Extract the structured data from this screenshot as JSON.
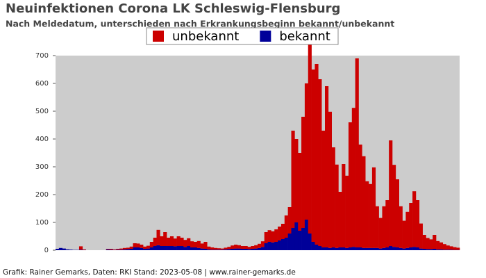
{
  "chart_data": {
    "type": "stacked_bar",
    "title": "Neuinfektionen Corona LK Schleswig-Flensburg",
    "subtitle": "Nach Meldedatum, unterschieden nach Erkrankungsbeginn bekannt/unbekannt",
    "footer": "Grafik: Rainer Gemarks, Daten: RKI Stand: 2023-05-08 | www.rainer-gemarks.de",
    "categories": [
      null,
      null,
      null,
      null,
      null,
      null,
      null,
      null,
      null,
      null,
      null,
      null,
      null,
      null,
      null,
      null,
      null,
      null,
      null,
      null,
      null,
      null,
      null,
      null,
      null,
      null,
      null,
      null,
      null,
      null,
      null,
      null,
      null,
      null,
      null,
      null,
      null,
      null,
      null,
      null,
      null,
      null,
      null,
      null,
      null,
      null,
      null,
      null,
      null,
      null,
      null,
      null,
      null,
      null,
      null,
      null,
      null,
      null,
      null,
      null,
      null,
      null,
      null,
      null,
      null,
      null,
      null,
      null,
      null,
      null,
      null,
      null,
      null,
      null,
      null,
      null,
      null,
      null,
      null,
      null,
      null,
      null,
      null,
      null,
      null,
      null,
      null,
      null,
      null,
      null,
      null,
      null,
      null,
      null,
      null,
      null,
      null,
      null,
      null,
      null,
      null,
      null,
      null,
      null,
      null,
      null,
      null,
      null,
      null,
      null,
      null,
      null,
      null,
      null,
      null,
      null,
      null,
      null,
      null,
      null
    ],
    "series": [
      {
        "name": "bekannt",
        "color": "#000099",
        "values": [
          5,
          8,
          6,
          3,
          2,
          1,
          1,
          2,
          1,
          0,
          0,
          0,
          0,
          0,
          0,
          3,
          2,
          1,
          2,
          2,
          3,
          4,
          5,
          10,
          10,
          8,
          5,
          6,
          10,
          15,
          18,
          15,
          15,
          15,
          15,
          14,
          15,
          15,
          12,
          15,
          10,
          10,
          8,
          6,
          5,
          3,
          2,
          2,
          2,
          2,
          3,
          4,
          5,
          6,
          6,
          5,
          5,
          4,
          5,
          6,
          8,
          12,
          25,
          30,
          28,
          30,
          35,
          40,
          45,
          60,
          80,
          100,
          70,
          80,
          110,
          60,
          30,
          20,
          15,
          10,
          10,
          8,
          10,
          8,
          10,
          10,
          8,
          10,
          12,
          10,
          10,
          8,
          8,
          8,
          8,
          8,
          6,
          8,
          10,
          15,
          12,
          10,
          8,
          6,
          8,
          10,
          12,
          10,
          6,
          5,
          4,
          4,
          5,
          3,
          3,
          2,
          2,
          2,
          1,
          1
        ]
      },
      {
        "name": "unbekannt",
        "color": "#cc0000",
        "values": [
          0,
          0,
          0,
          0,
          0,
          0,
          0,
          12,
          2,
          0,
          0,
          0,
          0,
          0,
          0,
          2,
          3,
          2,
          3,
          4,
          5,
          5,
          8,
          15,
          14,
          12,
          8,
          10,
          20,
          30,
          55,
          35,
          50,
          30,
          35,
          28,
          35,
          30,
          25,
          28,
          22,
          20,
          25,
          18,
          25,
          10,
          8,
          6,
          5,
          4,
          6,
          8,
          12,
          14,
          12,
          10,
          10,
          8,
          10,
          12,
          15,
          20,
          40,
          42,
          40,
          45,
          50,
          55,
          80,
          95,
          350,
          300,
          280,
          400,
          490,
          690,
          620,
          650,
          600,
          420,
          580,
          490,
          360,
          300,
          200,
          300,
          260,
          450,
          500,
          680,
          370,
          330,
          240,
          230,
          290,
          150,
          110,
          150,
          170,
          380,
          295,
          245,
          150,
          100,
          130,
          160,
          200,
          170,
          90,
          50,
          40,
          35,
          50,
          30,
          25,
          20,
          15,
          12,
          10,
          8
        ]
      }
    ],
    "legend_order": [
      1,
      0
    ],
    "ylim": [
      0,
      700
    ],
    "yticks": [
      0,
      100,
      200,
      300,
      400,
      500,
      600,
      700
    ],
    "grid": false,
    "plot_background": "#cccccc"
  }
}
